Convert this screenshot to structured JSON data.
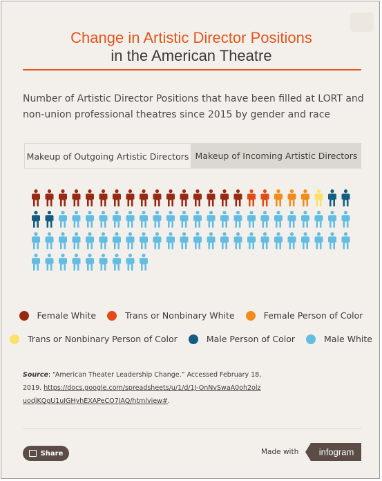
{
  "title": {
    "line1": "Change in Artistic Director Positions",
    "line2": "in the American Theatre"
  },
  "subtitle": "Number of Artistic Director Positions that have been filled at LORT and non-union professional theatres since 2015 by gender and race",
  "tabs": [
    {
      "label": "Makeup of Outgoing Artistic Directors",
      "active": true
    },
    {
      "label": "Makeup of Incoming Artistic Directors",
      "active": false
    }
  ],
  "chart_data": {
    "type": "pictogram",
    "icon": "person-icon",
    "icons_per_row": 24,
    "series": [
      {
        "name": "Female White",
        "color": "#982a14",
        "value": 16
      },
      {
        "name": "Trans or Nonbinary White",
        "color": "#e24b16",
        "value": 2
      },
      {
        "name": "Female Person of Color",
        "color": "#f18c1c",
        "value": 3
      },
      {
        "name": "Trans or Nonbinary Person of Color",
        "color": "#fae26a",
        "value": 1
      },
      {
        "name": "Male Person of Color",
        "color": "#135d82",
        "value": 4
      },
      {
        "name": "Male White",
        "color": "#63bde3",
        "value": 55
      }
    ]
  },
  "legend": {
    "row1": [
      "Female White",
      "Trans or Nonbinary White",
      "Female Person of Color"
    ],
    "row2": [
      "Trans or Nonbinary Person of Color",
      "Male Person of Color",
      "Male White"
    ]
  },
  "source": {
    "label": "Source",
    "text": ": “American Theater Leadership Change.” Accessed February 18, 2019. ",
    "link": "https://docs.google.com/spreadsheets/u/1/d/1J-OnNvSwaA0oh2olzuodjKQgU1uIGHyhEXAPeCO7IAQ/htmlview#",
    "trailing": "."
  },
  "footer": {
    "share_label": "Share",
    "made_with": "Made with",
    "brand": "infogram"
  },
  "colors": {
    "accent": "#e0561e",
    "background": "#f3f0eb"
  }
}
